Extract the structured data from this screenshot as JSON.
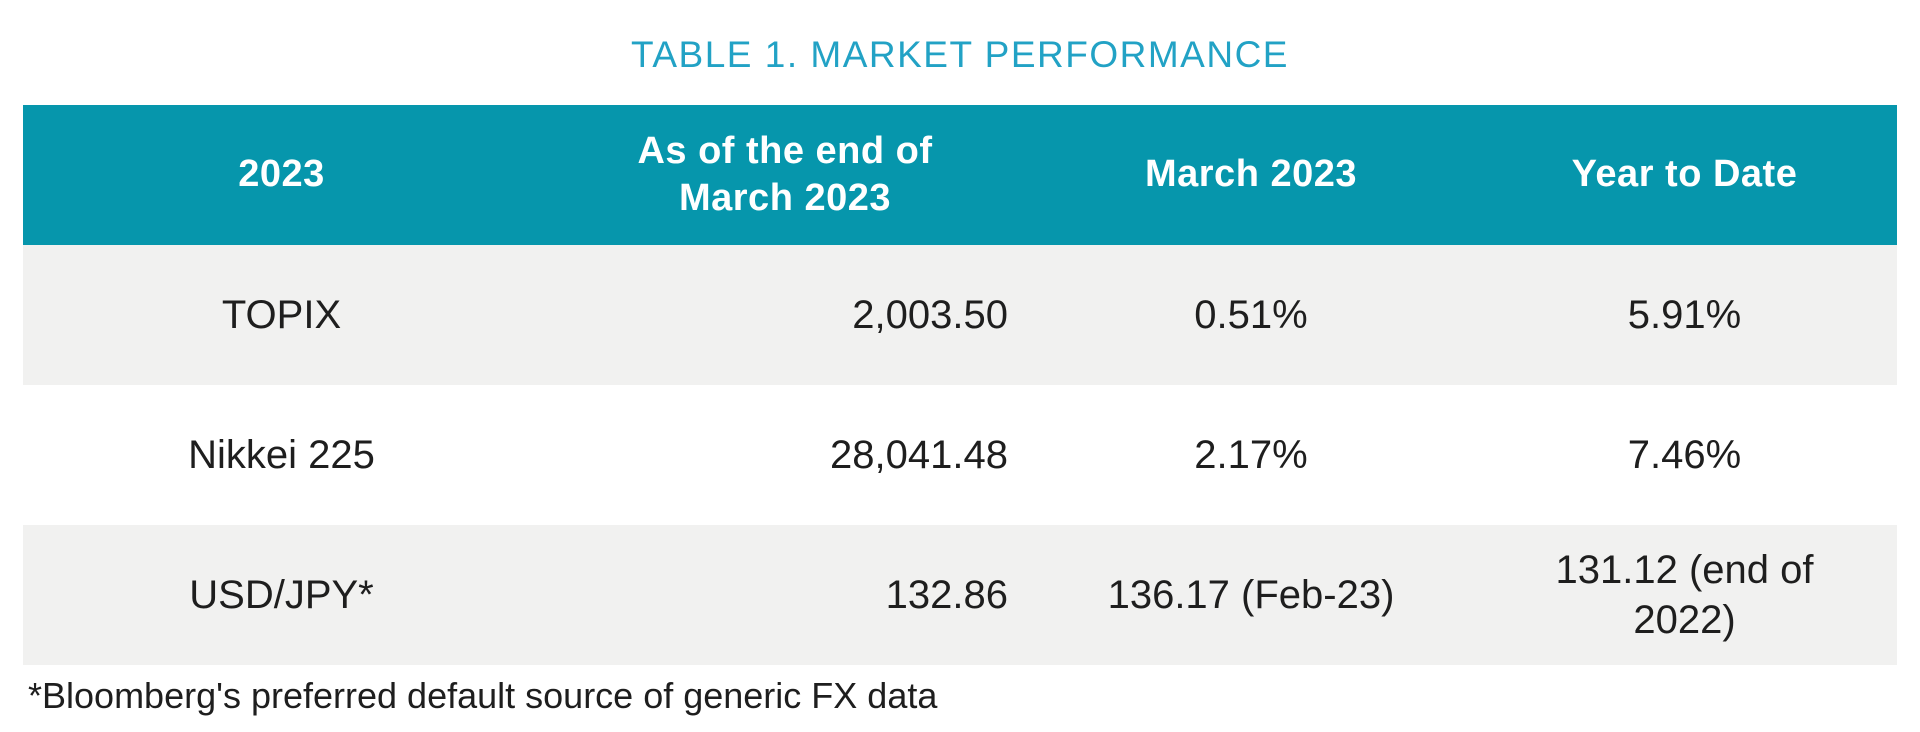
{
  "title": {
    "text": "TABLE 1. MARKET PERFORMANCE",
    "color": "#22A2C5"
  },
  "table": {
    "header": {
      "background_color": "#0696AC",
      "text_color": "#ffffff",
      "columns": {
        "year": "2023",
        "end_of_march": "As of the end of\nMarch 2023",
        "march": "March 2023",
        "ytd": "Year to Date"
      }
    },
    "row_shade_color": "#F1F1F0",
    "rows": [
      {
        "name": "TOPIX",
        "end_of_march": "2,003.50",
        "march": "0.51%",
        "ytd": "5.91%"
      },
      {
        "name": "Nikkei 225",
        "end_of_march": "28,041.48",
        "march": "2.17%",
        "ytd": "7.46%"
      },
      {
        "name": "USD/JPY*",
        "end_of_march": "132.86",
        "march": "136.17 (Feb-23)",
        "ytd": "131.12 (end of\n2022)"
      }
    ]
  },
  "footnote": {
    "text": "*Bloomberg's preferred default source of generic FX data"
  }
}
